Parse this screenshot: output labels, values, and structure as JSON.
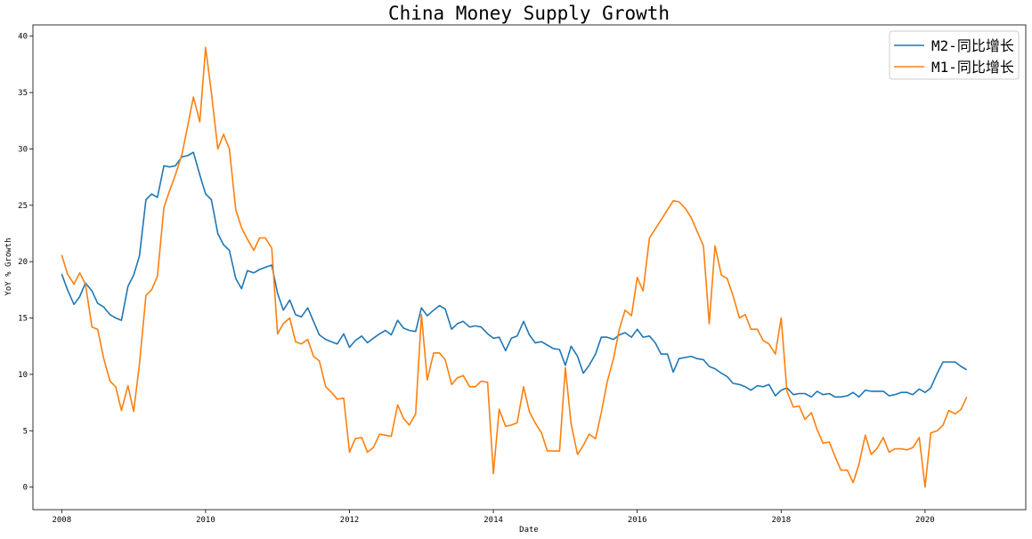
{
  "chart_data": {
    "type": "line",
    "title": "China Money Supply Growth",
    "xlabel": "Date",
    "ylabel": "YoY % Growth",
    "xlim": [
      2007.6,
      2021.4
    ],
    "ylim": [
      -2,
      41
    ],
    "x_ticks": [
      2008,
      2010,
      2012,
      2014,
      2016,
      2018,
      2020
    ],
    "y_ticks": [
      0,
      5,
      10,
      15,
      20,
      25,
      30,
      35,
      40
    ],
    "grid": false,
    "legend_position": "top-right",
    "series": [
      {
        "name": "M2-同比增长",
        "color": "#1f77b4",
        "points": [
          [
            2008.0,
            18.9
          ],
          [
            2008.08,
            17.5
          ],
          [
            2008.17,
            16.2
          ],
          [
            2008.25,
            16.9
          ],
          [
            2008.33,
            18.1
          ],
          [
            2008.42,
            17.4
          ],
          [
            2008.5,
            16.3
          ],
          [
            2008.58,
            16.0
          ],
          [
            2008.67,
            15.3
          ],
          [
            2008.75,
            15.0
          ],
          [
            2008.83,
            14.8
          ],
          [
            2008.92,
            17.8
          ],
          [
            2009.0,
            18.8
          ],
          [
            2009.08,
            20.5
          ],
          [
            2009.17,
            25.5
          ],
          [
            2009.25,
            26.0
          ],
          [
            2009.33,
            25.7
          ],
          [
            2009.42,
            28.5
          ],
          [
            2009.5,
            28.4
          ],
          [
            2009.58,
            28.5
          ],
          [
            2009.67,
            29.3
          ],
          [
            2009.75,
            29.4
          ],
          [
            2009.83,
            29.7
          ],
          [
            2009.92,
            27.7
          ],
          [
            2010.0,
            26.0
          ],
          [
            2010.08,
            25.5
          ],
          [
            2010.17,
            22.5
          ],
          [
            2010.25,
            21.5
          ],
          [
            2010.33,
            21.0
          ],
          [
            2010.42,
            18.5
          ],
          [
            2010.5,
            17.6
          ],
          [
            2010.58,
            19.2
          ],
          [
            2010.67,
            19.0
          ],
          [
            2010.75,
            19.3
          ],
          [
            2010.83,
            19.5
          ],
          [
            2010.92,
            19.7
          ],
          [
            2011.0,
            17.2
          ],
          [
            2011.08,
            15.7
          ],
          [
            2011.17,
            16.6
          ],
          [
            2011.25,
            15.3
          ],
          [
            2011.33,
            15.1
          ],
          [
            2011.42,
            15.9
          ],
          [
            2011.5,
            14.7
          ],
          [
            2011.58,
            13.5
          ],
          [
            2011.67,
            13.1
          ],
          [
            2011.75,
            12.9
          ],
          [
            2011.83,
            12.7
          ],
          [
            2011.92,
            13.6
          ],
          [
            2012.0,
            12.4
          ],
          [
            2012.08,
            13.0
          ],
          [
            2012.17,
            13.4
          ],
          [
            2012.25,
            12.8
          ],
          [
            2012.33,
            13.2
          ],
          [
            2012.42,
            13.6
          ],
          [
            2012.5,
            13.9
          ],
          [
            2012.58,
            13.5
          ],
          [
            2012.67,
            14.8
          ],
          [
            2012.75,
            14.1
          ],
          [
            2012.83,
            13.9
          ],
          [
            2012.92,
            13.8
          ],
          [
            2013.0,
            15.9
          ],
          [
            2013.08,
            15.2
          ],
          [
            2013.17,
            15.7
          ],
          [
            2013.25,
            16.1
          ],
          [
            2013.33,
            15.8
          ],
          [
            2013.42,
            14.0
          ],
          [
            2013.5,
            14.5
          ],
          [
            2013.58,
            14.7
          ],
          [
            2013.67,
            14.2
          ],
          [
            2013.75,
            14.3
          ],
          [
            2013.83,
            14.2
          ],
          [
            2013.92,
            13.6
          ],
          [
            2014.0,
            13.2
          ],
          [
            2014.08,
            13.3
          ],
          [
            2014.17,
            12.1
          ],
          [
            2014.25,
            13.2
          ],
          [
            2014.33,
            13.4
          ],
          [
            2014.42,
            14.7
          ],
          [
            2014.5,
            13.5
          ],
          [
            2014.58,
            12.8
          ],
          [
            2014.67,
            12.9
          ],
          [
            2014.75,
            12.6
          ],
          [
            2014.83,
            12.3
          ],
          [
            2014.92,
            12.2
          ],
          [
            2015.0,
            10.8
          ],
          [
            2015.08,
            12.5
          ],
          [
            2015.17,
            11.6
          ],
          [
            2015.25,
            10.1
          ],
          [
            2015.33,
            10.8
          ],
          [
            2015.42,
            11.8
          ],
          [
            2015.5,
            13.3
          ],
          [
            2015.58,
            13.3
          ],
          [
            2015.67,
            13.1
          ],
          [
            2015.75,
            13.5
          ],
          [
            2015.83,
            13.7
          ],
          [
            2015.92,
            13.3
          ],
          [
            2016.0,
            14.0
          ],
          [
            2016.08,
            13.3
          ],
          [
            2016.17,
            13.4
          ],
          [
            2016.25,
            12.8
          ],
          [
            2016.33,
            11.8
          ],
          [
            2016.42,
            11.8
          ],
          [
            2016.5,
            10.2
          ],
          [
            2016.58,
            11.4
          ],
          [
            2016.67,
            11.5
          ],
          [
            2016.75,
            11.6
          ],
          [
            2016.83,
            11.4
          ],
          [
            2016.92,
            11.3
          ],
          [
            2017.0,
            10.7
          ],
          [
            2017.08,
            10.5
          ],
          [
            2017.17,
            10.1
          ],
          [
            2017.25,
            9.8
          ],
          [
            2017.33,
            9.2
          ],
          [
            2017.42,
            9.1
          ],
          [
            2017.5,
            8.9
          ],
          [
            2017.58,
            8.6
          ],
          [
            2017.67,
            9.0
          ],
          [
            2017.75,
            8.9
          ],
          [
            2017.83,
            9.1
          ],
          [
            2017.92,
            8.1
          ],
          [
            2018.0,
            8.6
          ],
          [
            2018.08,
            8.8
          ],
          [
            2018.17,
            8.2
          ],
          [
            2018.25,
            8.3
          ],
          [
            2018.33,
            8.3
          ],
          [
            2018.42,
            8.0
          ],
          [
            2018.5,
            8.5
          ],
          [
            2018.58,
            8.2
          ],
          [
            2018.67,
            8.3
          ],
          [
            2018.75,
            8.0
          ],
          [
            2018.83,
            8.0
          ],
          [
            2018.92,
            8.1
          ],
          [
            2019.0,
            8.4
          ],
          [
            2019.08,
            8.0
          ],
          [
            2019.17,
            8.6
          ],
          [
            2019.25,
            8.5
          ],
          [
            2019.33,
            8.5
          ],
          [
            2019.42,
            8.5
          ],
          [
            2019.5,
            8.1
          ],
          [
            2019.58,
            8.2
          ],
          [
            2019.67,
            8.4
          ],
          [
            2019.75,
            8.4
          ],
          [
            2019.83,
            8.2
          ],
          [
            2019.92,
            8.7
          ],
          [
            2020.0,
            8.4
          ],
          [
            2020.08,
            8.8
          ],
          [
            2020.17,
            10.1
          ],
          [
            2020.25,
            11.1
          ],
          [
            2020.33,
            11.1
          ],
          [
            2020.42,
            11.1
          ],
          [
            2020.5,
            10.7
          ],
          [
            2020.58,
            10.4
          ]
        ]
      },
      {
        "name": "M1-同比增长",
        "color": "#ff7f0e",
        "points": [
          [
            2008.0,
            20.6
          ],
          [
            2008.08,
            18.9
          ],
          [
            2008.17,
            18.0
          ],
          [
            2008.25,
            19.0
          ],
          [
            2008.33,
            18.0
          ],
          [
            2008.42,
            14.2
          ],
          [
            2008.5,
            14.0
          ],
          [
            2008.58,
            11.5
          ],
          [
            2008.67,
            9.4
          ],
          [
            2008.75,
            8.9
          ],
          [
            2008.83,
            6.8
          ],
          [
            2008.92,
            9.0
          ],
          [
            2009.0,
            6.7
          ],
          [
            2009.08,
            10.9
          ],
          [
            2009.17,
            17.0
          ],
          [
            2009.25,
            17.5
          ],
          [
            2009.33,
            18.7
          ],
          [
            2009.42,
            24.8
          ],
          [
            2009.5,
            26.3
          ],
          [
            2009.58,
            27.7
          ],
          [
            2009.67,
            29.5
          ],
          [
            2009.75,
            32.0
          ],
          [
            2009.83,
            34.6
          ],
          [
            2009.92,
            32.4
          ],
          [
            2010.0,
            39.0
          ],
          [
            2010.08,
            35.0
          ],
          [
            2010.17,
            30.0
          ],
          [
            2010.25,
            31.3
          ],
          [
            2010.33,
            30.0
          ],
          [
            2010.42,
            24.6
          ],
          [
            2010.5,
            23.0
          ],
          [
            2010.58,
            22.0
          ],
          [
            2010.67,
            21.0
          ],
          [
            2010.75,
            22.1
          ],
          [
            2010.83,
            22.1
          ],
          [
            2010.92,
            21.2
          ],
          [
            2011.0,
            13.6
          ],
          [
            2011.08,
            14.5
          ],
          [
            2011.17,
            15.0
          ],
          [
            2011.25,
            12.9
          ],
          [
            2011.33,
            12.7
          ],
          [
            2011.42,
            13.1
          ],
          [
            2011.5,
            11.6
          ],
          [
            2011.58,
            11.2
          ],
          [
            2011.67,
            8.9
          ],
          [
            2011.75,
            8.4
          ],
          [
            2011.83,
            7.8
          ],
          [
            2011.92,
            7.9
          ],
          [
            2012.0,
            3.1
          ],
          [
            2012.08,
            4.3
          ],
          [
            2012.17,
            4.4
          ],
          [
            2012.25,
            3.1
          ],
          [
            2012.33,
            3.5
          ],
          [
            2012.42,
            4.7
          ],
          [
            2012.5,
            4.6
          ],
          [
            2012.58,
            4.5
          ],
          [
            2012.67,
            7.3
          ],
          [
            2012.75,
            6.1
          ],
          [
            2012.83,
            5.5
          ],
          [
            2012.92,
            6.5
          ],
          [
            2013.0,
            15.3
          ],
          [
            2013.08,
            9.5
          ],
          [
            2013.17,
            11.9
          ],
          [
            2013.25,
            11.9
          ],
          [
            2013.33,
            11.3
          ],
          [
            2013.42,
            9.1
          ],
          [
            2013.5,
            9.7
          ],
          [
            2013.58,
            9.9
          ],
          [
            2013.67,
            8.9
          ],
          [
            2013.75,
            8.9
          ],
          [
            2013.83,
            9.4
          ],
          [
            2013.92,
            9.3
          ],
          [
            2014.0,
            1.2
          ],
          [
            2014.08,
            6.9
          ],
          [
            2014.17,
            5.4
          ],
          [
            2014.25,
            5.5
          ],
          [
            2014.33,
            5.7
          ],
          [
            2014.42,
            8.9
          ],
          [
            2014.5,
            6.7
          ],
          [
            2014.58,
            5.7
          ],
          [
            2014.67,
            4.8
          ],
          [
            2014.75,
            3.2
          ],
          [
            2014.83,
            3.2
          ],
          [
            2014.92,
            3.2
          ],
          [
            2015.0,
            10.6
          ],
          [
            2015.08,
            5.6
          ],
          [
            2015.17,
            2.9
          ],
          [
            2015.25,
            3.7
          ],
          [
            2015.33,
            4.7
          ],
          [
            2015.42,
            4.3
          ],
          [
            2015.5,
            6.6
          ],
          [
            2015.58,
            9.3
          ],
          [
            2015.67,
            11.4
          ],
          [
            2015.75,
            14.0
          ],
          [
            2015.83,
            15.7
          ],
          [
            2015.92,
            15.2
          ],
          [
            2016.0,
            18.6
          ],
          [
            2016.08,
            17.4
          ],
          [
            2016.17,
            22.1
          ],
          [
            2016.25,
            22.9
          ],
          [
            2016.33,
            23.7
          ],
          [
            2016.42,
            24.6
          ],
          [
            2016.5,
            25.4
          ],
          [
            2016.58,
            25.3
          ],
          [
            2016.67,
            24.7
          ],
          [
            2016.75,
            23.9
          ],
          [
            2016.83,
            22.7
          ],
          [
            2016.92,
            21.4
          ],
          [
            2017.0,
            14.5
          ],
          [
            2017.08,
            21.4
          ],
          [
            2017.17,
            18.8
          ],
          [
            2017.25,
            18.5
          ],
          [
            2017.33,
            17.0
          ],
          [
            2017.42,
            15.0
          ],
          [
            2017.5,
            15.3
          ],
          [
            2017.58,
            14.0
          ],
          [
            2017.67,
            14.0
          ],
          [
            2017.75,
            13.0
          ],
          [
            2017.83,
            12.7
          ],
          [
            2017.92,
            11.8
          ],
          [
            2018.0,
            15.0
          ],
          [
            2018.08,
            8.5
          ],
          [
            2018.17,
            7.1
          ],
          [
            2018.25,
            7.2
          ],
          [
            2018.33,
            6.0
          ],
          [
            2018.42,
            6.6
          ],
          [
            2018.5,
            5.1
          ],
          [
            2018.58,
            3.9
          ],
          [
            2018.67,
            4.0
          ],
          [
            2018.75,
            2.7
          ],
          [
            2018.83,
            1.5
          ],
          [
            2018.92,
            1.5
          ],
          [
            2019.0,
            0.4
          ],
          [
            2019.08,
            2.0
          ],
          [
            2019.17,
            4.6
          ],
          [
            2019.25,
            2.9
          ],
          [
            2019.33,
            3.4
          ],
          [
            2019.42,
            4.4
          ],
          [
            2019.5,
            3.1
          ],
          [
            2019.58,
            3.4
          ],
          [
            2019.67,
            3.4
          ],
          [
            2019.75,
            3.3
          ],
          [
            2019.83,
            3.5
          ],
          [
            2019.92,
            4.4
          ],
          [
            2020.0,
            0.0
          ],
          [
            2020.08,
            4.8
          ],
          [
            2020.17,
            5.0
          ],
          [
            2020.25,
            5.5
          ],
          [
            2020.33,
            6.8
          ],
          [
            2020.42,
            6.5
          ],
          [
            2020.5,
            6.9
          ],
          [
            2020.58,
            8.0
          ]
        ]
      }
    ]
  }
}
